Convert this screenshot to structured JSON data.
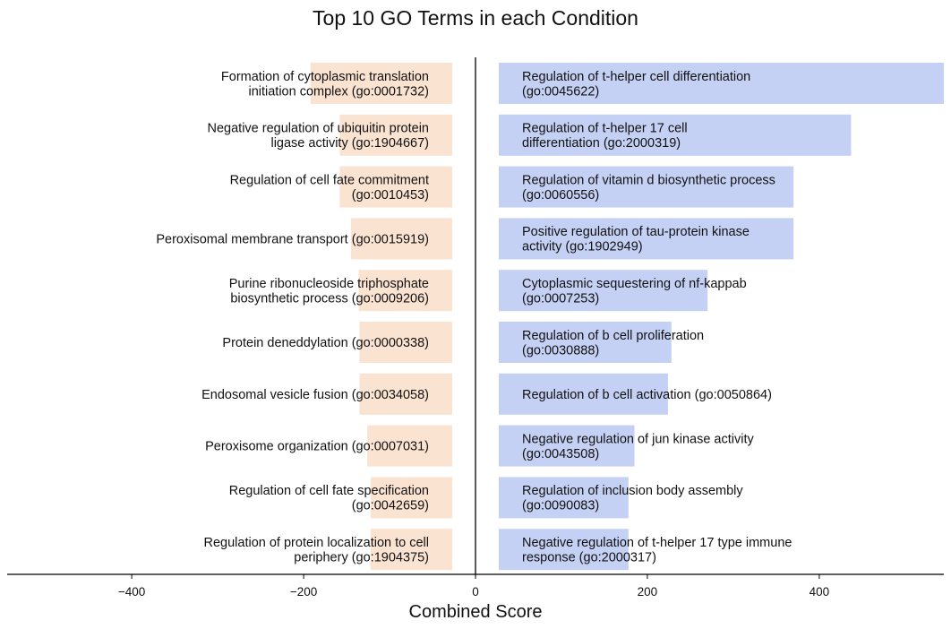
{
  "chart_data": {
    "type": "bar",
    "orientation": "horizontal",
    "title": "Top 10 GO Terms in each Condition",
    "xlabel": "Combined Score",
    "ylabel": "",
    "xlim": [
      -545,
      545
    ],
    "xticks": [
      -400,
      -200,
      0,
      200,
      400
    ],
    "xtick_labels": [
      "−400",
      "−200",
      "0",
      "200",
      "400"
    ],
    "grid": false,
    "colors": {
      "left": "#fbe3d2",
      "right": "#c5d1f4",
      "text": "#111111",
      "axis": "#000000"
    },
    "series": [
      {
        "side": "left",
        "terms": [
          {
            "label": [
              "Formation of cytoplasmic translation",
              "initiation complex (go:0001732)"
            ],
            "value": -192
          },
          {
            "label": [
              "Negative regulation of ubiquitin protein",
              "ligase activity (go:1904667)"
            ],
            "value": -158
          },
          {
            "label": [
              "Regulation of cell fate commitment",
              "(go:0010453)"
            ],
            "value": -158
          },
          {
            "label": [
              "Peroxisomal membrane transport (go:0015919)"
            ],
            "value": -145
          },
          {
            "label": [
              "Purine ribonucleoside triphosphate",
              "biosynthetic process (go:0009206)"
            ],
            "value": -136
          },
          {
            "label": [
              "Protein deneddylation (go:0000338)"
            ],
            "value": -135
          },
          {
            "label": [
              "Endosomal vesicle fusion (go:0034058)"
            ],
            "value": -135
          },
          {
            "label": [
              "Peroxisome organization (go:0007031)"
            ],
            "value": -126
          },
          {
            "label": [
              "Regulation of cell fate specification",
              "(go:0042659)"
            ],
            "value": -122
          },
          {
            "label": [
              "Regulation of protein localization to cell",
              "periphery (go:1904375)"
            ],
            "value": -122
          }
        ]
      },
      {
        "side": "right",
        "terms": [
          {
            "label": [
              "Regulation of t-helper cell differentiation",
              "(go:0045622)"
            ],
            "value": 545
          },
          {
            "label": [
              "Regulation of t-helper 17 cell",
              "differentiation (go:2000319)"
            ],
            "value": 437
          },
          {
            "label": [
              "Regulation of vitamin d biosynthetic process",
              "(go:0060556)"
            ],
            "value": 370
          },
          {
            "label": [
              "Positive regulation of tau-protein kinase",
              "activity (go:1902949)"
            ],
            "value": 370
          },
          {
            "label": [
              "Cytoplasmic sequestering of nf-kappab",
              "(go:0007253)"
            ],
            "value": 270
          },
          {
            "label": [
              "Regulation of b cell proliferation",
              "(go:0030888)"
            ],
            "value": 228
          },
          {
            "label": [
              "Regulation of b cell activation (go:0050864)"
            ],
            "value": 224
          },
          {
            "label": [
              "Negative regulation of jun kinase activity",
              "(go:0043508)"
            ],
            "value": 185
          },
          {
            "label": [
              "Regulation of inclusion body assembly",
              "(go:0090083)"
            ],
            "value": 178
          },
          {
            "label": [
              "Negative regulation of t-helper 17 type immune",
              "response (go:2000317)"
            ],
            "value": 178
          }
        ]
      }
    ]
  }
}
